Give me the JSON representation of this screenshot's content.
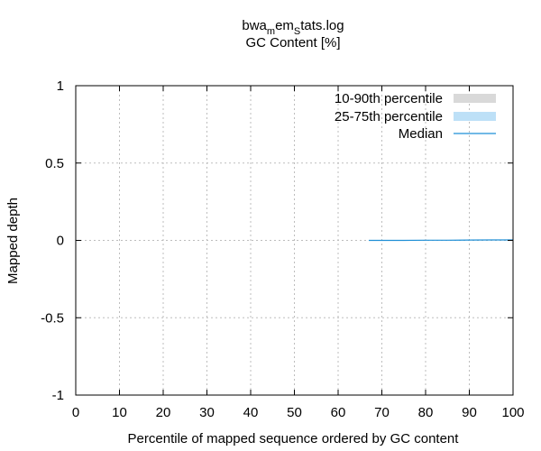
{
  "chart_data": {
    "type": "area",
    "title_parts": [
      {
        "text": "bwa",
        "sub": false
      },
      {
        "text": "m",
        "sub": true
      },
      {
        "text": "em",
        "sub": false
      },
      {
        "text": "S",
        "sub": true
      },
      {
        "text": "tats.log",
        "sub": false
      }
    ],
    "subtitle": "GC Content [%]",
    "xlabel": "Percentile of mapped sequence ordered by GC content",
    "ylabel": "Mapped depth",
    "xlim": [
      0,
      100
    ],
    "ylim": [
      -1,
      1
    ],
    "x_ticks": [
      0,
      10,
      20,
      30,
      40,
      50,
      60,
      70,
      80,
      90,
      100
    ],
    "x_tick_labels": [
      "0",
      "10",
      "20",
      "30",
      "40",
      "50",
      "60",
      "70",
      "80",
      "90",
      "100"
    ],
    "y_ticks": [
      1,
      0.5,
      0,
      -0.5,
      -1
    ],
    "y_tick_labels": [
      "1",
      "0.5",
      "0",
      "-0.5",
      "-1"
    ],
    "grid": true,
    "legend_position": "top-right",
    "series": [
      {
        "name": "10-90th percentile",
        "kind": "band",
        "color": "#d9d9d9",
        "x": [],
        "low": [],
        "high": []
      },
      {
        "name": "25-75th percentile",
        "kind": "band",
        "color": "#bde0f7",
        "x": [],
        "low": [],
        "high": []
      },
      {
        "name": "Median",
        "kind": "line",
        "color": "#1f8fd6",
        "x": [
          67,
          70,
          75,
          80,
          85,
          90,
          95,
          100
        ],
        "values": [
          0,
          0,
          0,
          0.001,
          0.001,
          0.002,
          0.003,
          0.003
        ]
      }
    ]
  }
}
